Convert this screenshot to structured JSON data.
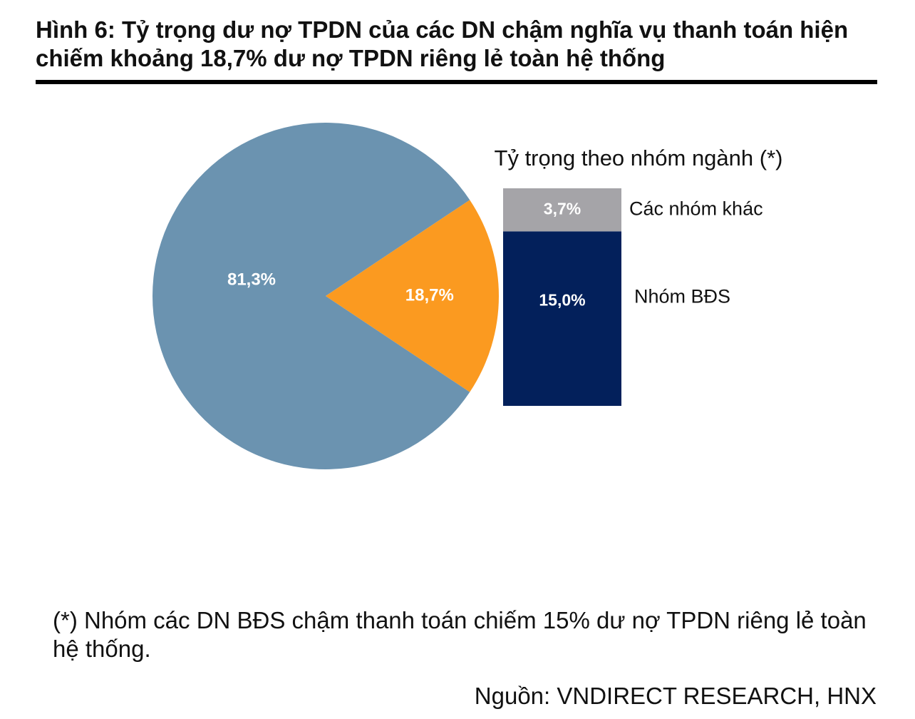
{
  "title": "Hình 6: Tỷ trọng dư nợ TPDN của các DN chậm nghĩa vụ thanh toán hiện chiếm khoảng 18,7% dư nợ TPDN riêng lẻ toàn hệ thống",
  "chart_data": [
    {
      "type": "pie",
      "slices": [
        {
          "label": "81,3%",
          "value": 81.3,
          "color": "#6b93b0"
        },
        {
          "label": "18,7%",
          "value": 18.7,
          "color": "#fb9a20"
        }
      ]
    },
    {
      "type": "bar",
      "stacked": true,
      "title": "Tỷ trọng theo nhóm ngành (*)",
      "series": [
        {
          "name": "Nhóm BĐS",
          "value": 15.0,
          "label": "15,0%",
          "color": "#03205b"
        },
        {
          "name": "Các nhóm khác",
          "value": 3.7,
          "label": "3,7%",
          "color": "#a5a4a8"
        }
      ]
    }
  ],
  "footnote": "(*) Nhóm các DN BĐS chậm thanh toán chiếm 15% dư nợ TPDN riêng lẻ toàn hệ thống.",
  "source": "Nguồn: VNDIRECT RESEARCH, HNX"
}
